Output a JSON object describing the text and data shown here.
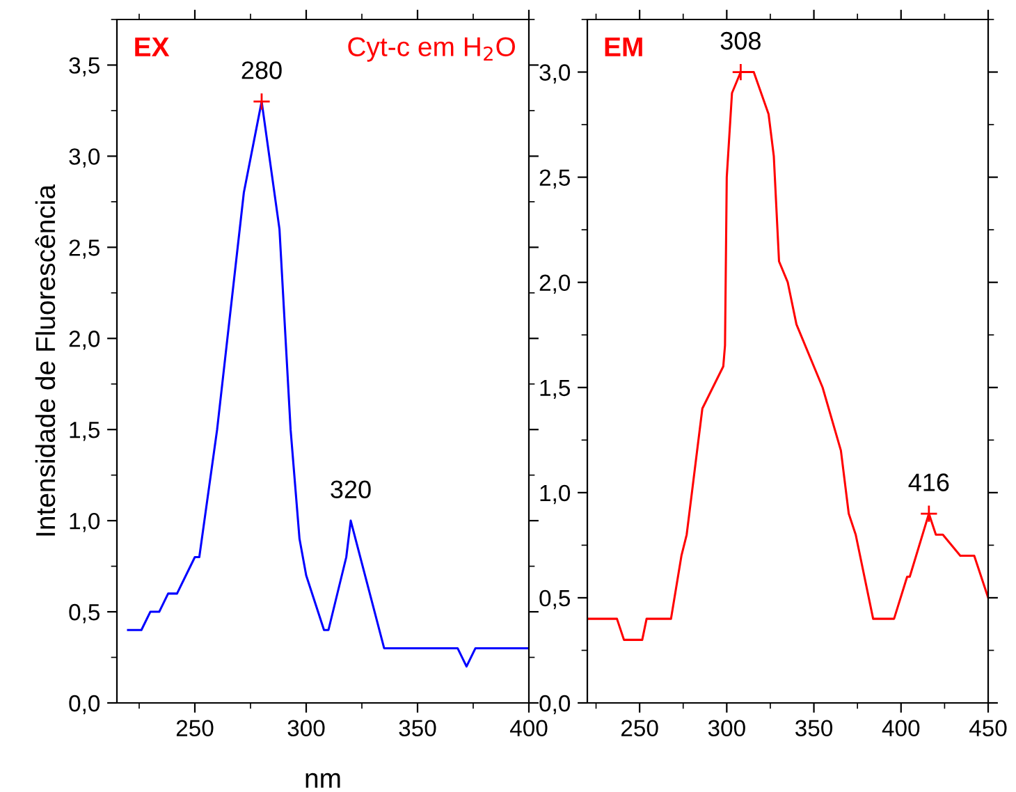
{
  "chart_data": [
    {
      "type": "line",
      "title": "EX",
      "xlabel": "nm",
      "ylabel": "Intensidade de Fluorescência",
      "xlim": [
        215,
        400
      ],
      "ylim": [
        0,
        3.75
      ],
      "xticks": [
        250,
        300,
        350,
        400
      ],
      "yticks": [
        {
          "value": 0,
          "label": "0,0"
        },
        {
          "value": 0.5,
          "label": "0,5"
        },
        {
          "value": 1.0,
          "label": "1,0"
        },
        {
          "value": 1.5,
          "label": "1,5"
        },
        {
          "value": 2.0,
          "label": "2,0"
        },
        {
          "value": 2.5,
          "label": "2,5"
        },
        {
          "value": 3.0,
          "label": "3,0"
        },
        {
          "value": 3.5,
          "label": "3,5"
        }
      ],
      "grid": false,
      "legend": false,
      "series": [
        {
          "color": "#0000ff",
          "x": [
            220,
            226,
            230,
            234,
            238,
            242,
            250,
            252,
            260,
            272,
            280,
            288,
            293,
            297,
            300,
            308,
            310,
            318,
            320,
            335,
            368,
            372,
            376,
            400
          ],
          "values": [
            0.4,
            0.4,
            0.5,
            0.5,
            0.6,
            0.6,
            0.8,
            0.8,
            1.5,
            2.8,
            3.3,
            2.6,
            1.5,
            0.9,
            0.7,
            0.4,
            0.4,
            0.8,
            1.0,
            0.3,
            0.3,
            0.2,
            0.3,
            0.3
          ]
        },
        {
          "type": "scatter",
          "marker": "cross",
          "color": "#ff0000",
          "x": [
            280
          ],
          "values": [
            3.3
          ]
        }
      ],
      "annotations": [
        {
          "text": "280",
          "x": 280,
          "y": 3.3
        },
        {
          "text": "320",
          "x": 320,
          "y": 1.0
        },
        "Cyt-c em H$_{2}$O"
      ]
    },
    {
      "type": "line",
      "title": "EM",
      "xlim": [
        220,
        450
      ],
      "ylim": [
        0,
        3.25
      ],
      "xticks": [
        250,
        300,
        350,
        400,
        450
      ],
      "yticks": [
        {
          "value": 0,
          "label": "0,0"
        },
        {
          "value": 0.5,
          "label": "0,5"
        },
        {
          "value": 1.0,
          "label": "1,0"
        },
        {
          "value": 1.5,
          "label": "1,5"
        },
        {
          "value": 2.0,
          "label": "2,0"
        },
        {
          "value": 2.5,
          "label": "2,5"
        },
        {
          "value": 3.0,
          "label": "3,0"
        }
      ],
      "grid": false,
      "legend": false,
      "series": [
        {
          "color": "#ff0000",
          "x": [
            220,
            237,
            241,
            251.5,
            254,
            268,
            274,
            277,
            286,
            298,
            299,
            300,
            303,
            308,
            315.5,
            324,
            327,
            330,
            335,
            340,
            355,
            365.5,
            370,
            374,
            384,
            396,
            403.5,
            405,
            416,
            420,
            424,
            434,
            442,
            450
          ],
          "values": [
            0.4,
            0.4,
            0.3,
            0.3,
            0.4,
            0.4,
            0.7,
            0.8,
            1.4,
            1.6,
            1.7,
            2.5,
            2.9,
            3.0,
            3.0,
            2.8,
            2.6,
            2.1,
            2.0,
            1.8,
            1.5,
            1.2,
            0.9,
            0.8,
            0.4,
            0.4,
            0.6,
            0.6,
            0.9,
            0.8,
            0.8,
            0.7,
            0.7,
            0.5
          ]
        },
        {
          "type": "scatter",
          "marker": "cross",
          "color": "#ff0000",
          "x": [
            308,
            416
          ],
          "values": [
            3.0,
            0.9
          ]
        }
      ],
      "annotations": [
        {
          "text": "308",
          "x": 308,
          "y": 3.0
        },
        {
          "text": "416",
          "x": 416,
          "y": 0.9
        }
      ]
    }
  ]
}
